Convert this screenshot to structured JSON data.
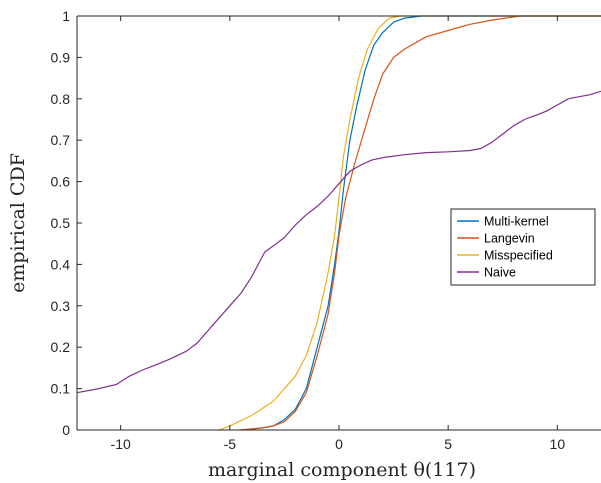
{
  "chart_data": {
    "type": "line",
    "title": "",
    "xlabel": "marginal component θ(117)",
    "ylabel": "empirical CDF",
    "xlim": [
      -12,
      12
    ],
    "ylim": [
      0,
      1
    ],
    "xticks": [
      -10,
      -5,
      0,
      5,
      10
    ],
    "xtick_labels": [
      "-10",
      "-5",
      "0",
      "5",
      "10"
    ],
    "yticks": [
      0,
      0.1,
      0.2,
      0.3,
      0.4,
      0.5,
      0.6,
      0.7,
      0.8,
      0.9,
      1
    ],
    "ytick_labels": [
      "0",
      "0.1",
      "0.2",
      "0.3",
      "0.4",
      "0.5",
      "0.6",
      "0.7",
      "0.8",
      "0.9",
      "1"
    ],
    "grid": false,
    "legend_position": "right-center",
    "series": [
      {
        "name": "Multi-kernel",
        "color": "#0072BD",
        "points": [
          [
            -4.5,
            0
          ],
          [
            -3.5,
            0.005
          ],
          [
            -3,
            0.01
          ],
          [
            -2.5,
            0.025
          ],
          [
            -2,
            0.05
          ],
          [
            -1.5,
            0.1
          ],
          [
            -1,
            0.2
          ],
          [
            -0.5,
            0.3
          ],
          [
            -0.2,
            0.4
          ],
          [
            0,
            0.48
          ],
          [
            0.2,
            0.58
          ],
          [
            0.5,
            0.7
          ],
          [
            0.8,
            0.78
          ],
          [
            1.2,
            0.87
          ],
          [
            1.6,
            0.93
          ],
          [
            2,
            0.96
          ],
          [
            2.5,
            0.985
          ],
          [
            3,
            0.995
          ],
          [
            3.8,
            1
          ],
          [
            12,
            1
          ]
        ]
      },
      {
        "name": "Langevin",
        "color": "#D95319",
        "points": [
          [
            -4.5,
            0
          ],
          [
            -3.5,
            0.005
          ],
          [
            -3,
            0.01
          ],
          [
            -2.5,
            0.02
          ],
          [
            -2,
            0.045
          ],
          [
            -1.5,
            0.09
          ],
          [
            -1,
            0.18
          ],
          [
            -0.5,
            0.28
          ],
          [
            -0.2,
            0.38
          ],
          [
            0,
            0.47
          ],
          [
            0.3,
            0.56
          ],
          [
            0.7,
            0.64
          ],
          [
            1.2,
            0.73
          ],
          [
            1.6,
            0.8
          ],
          [
            2,
            0.86
          ],
          [
            2.5,
            0.9
          ],
          [
            3,
            0.92
          ],
          [
            4,
            0.95
          ],
          [
            5,
            0.965
          ],
          [
            6,
            0.98
          ],
          [
            7,
            0.99
          ],
          [
            8.3,
            1
          ],
          [
            12,
            1
          ]
        ]
      },
      {
        "name": "Misspecified",
        "color": "#EDB120",
        "points": [
          [
            -5.5,
            0
          ],
          [
            -5,
            0.01
          ],
          [
            -4,
            0.035
          ],
          [
            -3,
            0.07
          ],
          [
            -2,
            0.13
          ],
          [
            -1.5,
            0.18
          ],
          [
            -1,
            0.26
          ],
          [
            -0.5,
            0.38
          ],
          [
            -0.2,
            0.47
          ],
          [
            0,
            0.56
          ],
          [
            0.2,
            0.66
          ],
          [
            0.5,
            0.75
          ],
          [
            0.9,
            0.85
          ],
          [
            1.3,
            0.92
          ],
          [
            1.8,
            0.97
          ],
          [
            2.3,
            0.995
          ],
          [
            2.8,
            1
          ],
          [
            12,
            1
          ]
        ]
      },
      {
        "name": "Naive",
        "color": "#7E2F8E",
        "points": [
          [
            -12,
            0.09
          ],
          [
            -11,
            0.1
          ],
          [
            -10.2,
            0.11
          ],
          [
            -9.6,
            0.13
          ],
          [
            -9,
            0.145
          ],
          [
            -8.5,
            0.155
          ],
          [
            -7.8,
            0.17
          ],
          [
            -7,
            0.19
          ],
          [
            -6.5,
            0.21
          ],
          [
            -6,
            0.24
          ],
          [
            -5.5,
            0.27
          ],
          [
            -5,
            0.3
          ],
          [
            -4.5,
            0.33
          ],
          [
            -4,
            0.37
          ],
          [
            -3.7,
            0.4
          ],
          [
            -3.4,
            0.43
          ],
          [
            -3,
            0.445
          ],
          [
            -2.5,
            0.465
          ],
          [
            -2,
            0.495
          ],
          [
            -1.5,
            0.52
          ],
          [
            -1,
            0.54
          ],
          [
            -0.5,
            0.565
          ],
          [
            0,
            0.595
          ],
          [
            0.5,
            0.625
          ],
          [
            1,
            0.64
          ],
          [
            1.5,
            0.652
          ],
          [
            2,
            0.658
          ],
          [
            3,
            0.665
          ],
          [
            4,
            0.67
          ],
          [
            5,
            0.672
          ],
          [
            6,
            0.675
          ],
          [
            6.5,
            0.68
          ],
          [
            7,
            0.695
          ],
          [
            7.5,
            0.715
          ],
          [
            8,
            0.735
          ],
          [
            8.5,
            0.75
          ],
          [
            9,
            0.76
          ],
          [
            9.5,
            0.77
          ],
          [
            10,
            0.785
          ],
          [
            10.5,
            0.8
          ],
          [
            11,
            0.805
          ],
          [
            11.5,
            0.81
          ],
          [
            12,
            0.818
          ]
        ]
      }
    ]
  }
}
